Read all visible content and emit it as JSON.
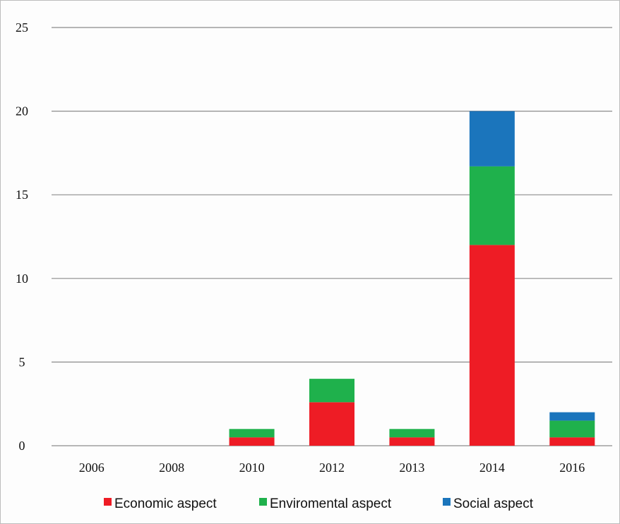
{
  "chart_data": {
    "type": "bar",
    "stacked": true,
    "categories": [
      "2006",
      "2008",
      "2010",
      "2012",
      "2013",
      "2014",
      "2016"
    ],
    "series": [
      {
        "name": "Economic aspect",
        "color": "#ee1c25",
        "values": [
          0,
          0,
          0.5,
          2.6,
          0.5,
          12,
          0.5
        ]
      },
      {
        "name": "Enviromental aspect",
        "color": "#1fb14c",
        "values": [
          0,
          0,
          0.5,
          1.4,
          0.5,
          4.7,
          1.0
        ]
      },
      {
        "name": "Social aspect",
        "color": "#1b75bc",
        "values": [
          0,
          0,
          0,
          0,
          0,
          3.3,
          0.5
        ]
      }
    ],
    "ylim": [
      0,
      25
    ],
    "yticks": [
      "0",
      "5",
      "10",
      "15",
      "20",
      "25"
    ],
    "grid": true,
    "legend_position": "bottom"
  }
}
